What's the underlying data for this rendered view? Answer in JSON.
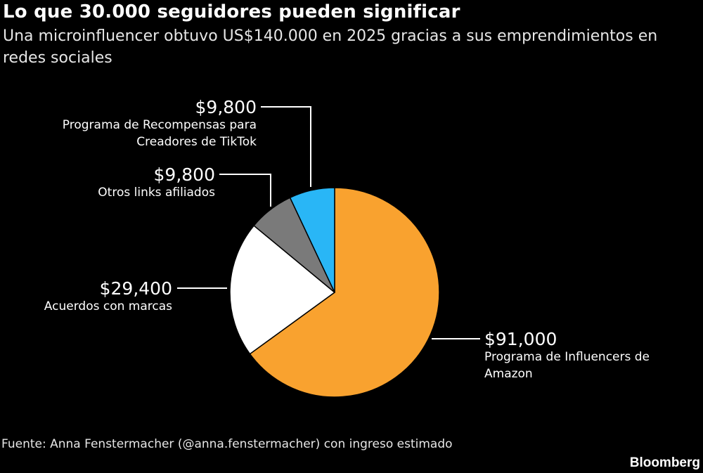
{
  "title": "Lo que 30.000 seguidores pueden significar",
  "subtitle": "Una microinfluencer obtuvo US$140.000 en 2025 gracias a sus emprendimientos en redes sociales",
  "source": "Fuente: Anna Fenstermacher (@anna.fenstermacher) con ingreso estimado",
  "brand": "Bloomberg",
  "colors": {
    "background": "#000000",
    "text": "#ffffff",
    "leader": "#ffffff",
    "slice_border": "#000000"
  },
  "chart_data": {
    "type": "pie",
    "title": "Lo que 30.000 seguidores pueden significar",
    "total": 140000,
    "slices": [
      {
        "value": 91000,
        "value_label": "$91,000",
        "label": [
          "Programa de Influencers de",
          "Amazon"
        ],
        "color": "#F9A22F"
      },
      {
        "value": 29400,
        "value_label": "$29,400",
        "label": [
          "Acuerdos con marcas"
        ],
        "color": "#FFFFFF"
      },
      {
        "value": 9800,
        "value_label": "$9,800",
        "label": [
          "Otros links afiliados"
        ],
        "color": "#7A7A7A"
      },
      {
        "value": 9800,
        "value_label": "$9,800",
        "label": [
          "Programa de Recompensas para",
          "Creadores de TikTok"
        ],
        "color": "#29B6F6"
      }
    ]
  }
}
